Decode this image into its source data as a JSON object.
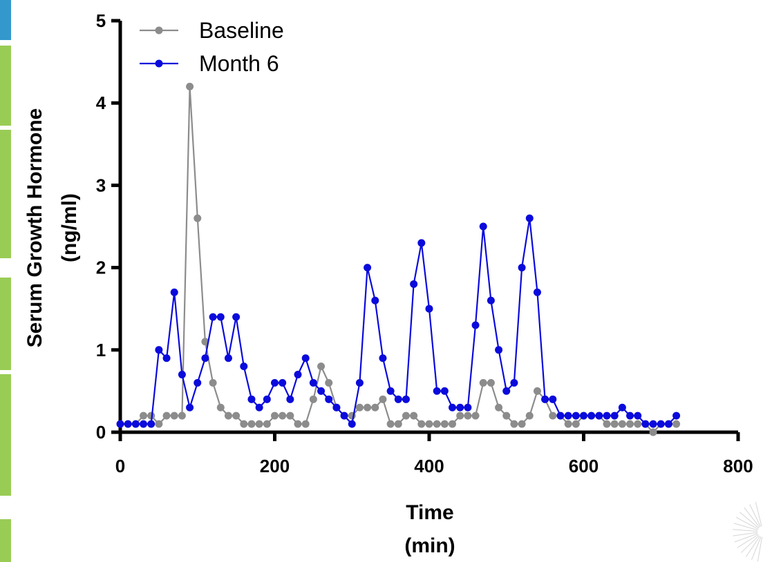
{
  "chart_data": {
    "type": "line",
    "xlabel": "Time",
    "xlabel_unit": "(min)",
    "ylabel": "Serum Growth Hormone",
    "ylabel_unit": "(ng/ml)",
    "xlim": [
      0,
      800
    ],
    "ylim": [
      0,
      5
    ],
    "x_ticks": [
      0,
      200,
      400,
      600,
      800
    ],
    "y_ticks": [
      0,
      1,
      2,
      3,
      4,
      5
    ],
    "x_tick_labels": [
      "0",
      "200",
      "400",
      "600",
      "800"
    ],
    "y_tick_labels": [
      "0",
      "1",
      "2",
      "3",
      "4",
      "5"
    ],
    "grid": false,
    "legend_position": "top-left",
    "series": [
      {
        "name": "Baseline",
        "color": "#8c8c8c",
        "x": [
          0,
          10,
          20,
          30,
          40,
          50,
          60,
          70,
          80,
          90,
          100,
          110,
          120,
          130,
          140,
          150,
          160,
          170,
          180,
          190,
          200,
          210,
          220,
          230,
          240,
          250,
          260,
          270,
          280,
          290,
          300,
          310,
          320,
          330,
          340,
          350,
          360,
          370,
          380,
          390,
          400,
          410,
          420,
          430,
          440,
          450,
          460,
          470,
          480,
          490,
          500,
          510,
          520,
          530,
          540,
          550,
          560,
          570,
          580,
          590,
          600,
          610,
          620,
          630,
          640,
          650,
          660,
          670,
          680,
          690,
          700,
          710,
          720
        ],
        "values": [
          0.1,
          0.1,
          0.1,
          0.2,
          0.2,
          0.1,
          0.2,
          0.2,
          0.2,
          4.2,
          2.6,
          1.1,
          0.6,
          0.3,
          0.2,
          0.2,
          0.1,
          0.1,
          0.1,
          0.1,
          0.2,
          0.2,
          0.2,
          0.1,
          0.1,
          0.4,
          0.8,
          0.6,
          0.3,
          0.2,
          0.2,
          0.3,
          0.3,
          0.3,
          0.4,
          0.1,
          0.1,
          0.2,
          0.2,
          0.1,
          0.1,
          0.1,
          0.1,
          0.1,
          0.2,
          0.2,
          0.2,
          0.6,
          0.6,
          0.3,
          0.2,
          0.1,
          0.1,
          0.2,
          0.5,
          0.4,
          0.2,
          0.2,
          0.1,
          0.1,
          0.2,
          0.2,
          0.2,
          0.1,
          0.1,
          0.1,
          0.1,
          0.1,
          0.1,
          0.0,
          0.1,
          0.1,
          0.1
        ]
      },
      {
        "name": "Month 6",
        "color": "#0a0adc",
        "x": [
          0,
          10,
          20,
          30,
          40,
          50,
          60,
          70,
          80,
          90,
          100,
          110,
          120,
          130,
          140,
          150,
          160,
          170,
          180,
          190,
          200,
          210,
          220,
          230,
          240,
          250,
          260,
          270,
          280,
          290,
          300,
          310,
          320,
          330,
          340,
          350,
          360,
          370,
          380,
          390,
          400,
          410,
          420,
          430,
          440,
          450,
          460,
          470,
          480,
          490,
          500,
          510,
          520,
          530,
          540,
          550,
          560,
          570,
          580,
          590,
          600,
          610,
          620,
          630,
          640,
          650,
          660,
          670,
          680,
          690,
          700,
          710,
          720
        ],
        "values": [
          0.1,
          0.1,
          0.1,
          0.1,
          0.1,
          1.0,
          0.9,
          1.7,
          0.7,
          0.3,
          0.6,
          0.9,
          1.4,
          1.4,
          0.9,
          1.4,
          0.8,
          0.4,
          0.3,
          0.4,
          0.6,
          0.6,
          0.4,
          0.7,
          0.9,
          0.6,
          0.5,
          0.4,
          0.3,
          0.2,
          0.1,
          0.6,
          2.0,
          1.6,
          0.9,
          0.5,
          0.4,
          0.4,
          1.8,
          2.3,
          1.5,
          0.5,
          0.5,
          0.3,
          0.3,
          0.3,
          1.3,
          2.5,
          1.6,
          1.0,
          0.5,
          0.6,
          2.0,
          2.6,
          1.7,
          0.4,
          0.4,
          0.2,
          0.2,
          0.2,
          0.2,
          0.2,
          0.2,
          0.2,
          0.2,
          0.3,
          0.2,
          0.2,
          0.1,
          0.1,
          0.1,
          0.1,
          0.2
        ]
      }
    ]
  },
  "decor": {
    "side_bars": [
      {
        "color": "#3399cc"
      },
      {
        "color": "#99cc55"
      },
      {
        "color": "#99cc55"
      },
      {
        "color": "#99cc55"
      },
      {
        "color": "#99cc55"
      },
      {
        "color": "#99cc55"
      }
    ]
  }
}
